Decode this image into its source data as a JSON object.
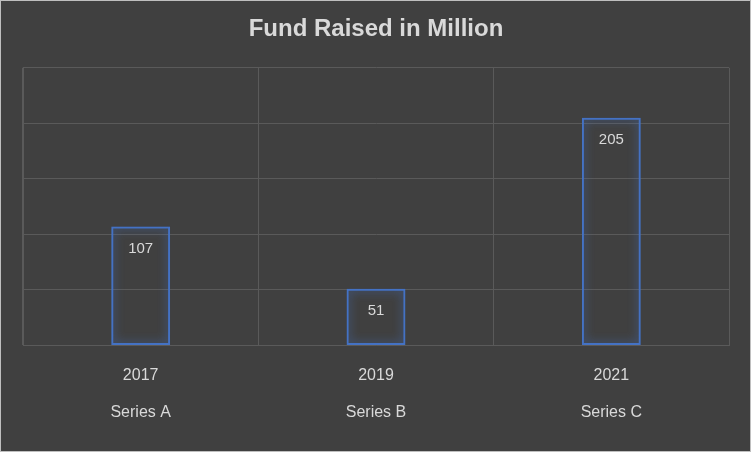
{
  "chart_data": {
    "type": "bar",
    "title": "Fund Raised in Million",
    "categories": [
      [
        "2017",
        "Series A"
      ],
      [
        "2019",
        "Series B"
      ],
      [
        "2021",
        "Series C"
      ]
    ],
    "values": [
      107,
      51,
      205
    ],
    "color": "#4472c4",
    "ylim": [
      0,
      250
    ],
    "yticks": [
      0,
      50,
      100,
      150,
      200,
      250
    ],
    "grid": true,
    "data_labels": true,
    "tick_labels": "x"
  }
}
